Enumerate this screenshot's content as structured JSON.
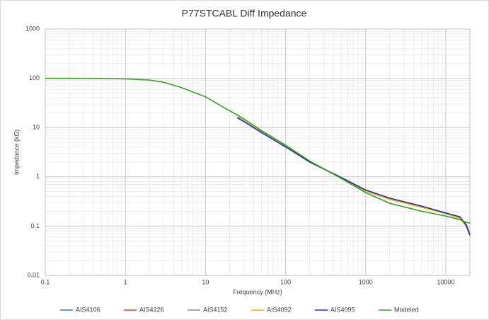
{
  "chart_data": {
    "type": "line",
    "title": "P77STCABL Diff Impedance",
    "x_label": "Frequency (MHz)",
    "y_label": "Impedance (kΩ)",
    "x": [
      0.1,
      0.2,
      0.5,
      1,
      2,
      3,
      5,
      10,
      20,
      25,
      30,
      50,
      100,
      200,
      500,
      1000,
      2000,
      5000,
      10000,
      15000,
      18000,
      20000
    ],
    "series": [
      {
        "name": "AIS4106",
        "color": "#4472c4",
        "values": [
          null,
          null,
          null,
          null,
          null,
          null,
          null,
          null,
          null,
          16,
          13.5,
          8,
          4.1,
          2.0,
          0.95,
          0.53,
          0.36,
          0.25,
          0.18,
          0.15,
          0.1,
          0.065
        ]
      },
      {
        "name": "AIS4126",
        "color": "#e03c31",
        "values": [
          null,
          null,
          null,
          null,
          null,
          null,
          null,
          null,
          null,
          16.2,
          13.6,
          8.1,
          4.1,
          2.0,
          0.95,
          0.52,
          0.35,
          0.25,
          0.18,
          0.145,
          0.1,
          0.066
        ]
      },
      {
        "name": "AIS4152",
        "color": "#8c8c8c",
        "values": [
          null,
          null,
          null,
          null,
          null,
          null,
          null,
          null,
          null,
          16.5,
          13.8,
          8.1,
          4.15,
          2.0,
          0.96,
          0.53,
          0.36,
          0.25,
          0.18,
          0.15,
          0.11,
          0.07
        ]
      },
      {
        "name": "AIS4092",
        "color": "#f5a623",
        "values": [
          null,
          null,
          null,
          null,
          null,
          null,
          null,
          null,
          null,
          16.3,
          13.7,
          8.0,
          4.1,
          2.0,
          0.95,
          0.52,
          0.35,
          0.24,
          0.18,
          0.145,
          0.1,
          0.064
        ]
      },
      {
        "name": "AIS4095",
        "color": "#1f3b99",
        "values": [
          null,
          null,
          null,
          null,
          null,
          null,
          null,
          null,
          null,
          15.8,
          13.3,
          7.9,
          4.05,
          2.0,
          0.96,
          0.54,
          0.37,
          0.255,
          0.185,
          0.155,
          0.105,
          0.066
        ]
      },
      {
        "name": "Modeled",
        "color": "#3a9a2a",
        "values": [
          100,
          100,
          99,
          97,
          92,
          83,
          65,
          42,
          22,
          18,
          15,
          8.7,
          4.4,
          2.1,
          0.92,
          0.48,
          0.29,
          0.2,
          0.16,
          0.135,
          0.12,
          0.115
        ]
      }
    ],
    "xlim": [
      0.1,
      20000
    ],
    "xticks": [
      0.1,
      1,
      10,
      100,
      1000,
      10000
    ],
    "ylim": [
      0.01,
      1000
    ],
    "yticks": [
      0.01,
      0.1,
      1,
      10,
      100,
      1000
    ],
    "xscale": "log",
    "yscale": "log",
    "grid": true,
    "minor_grid": true,
    "legend": "bottom"
  }
}
